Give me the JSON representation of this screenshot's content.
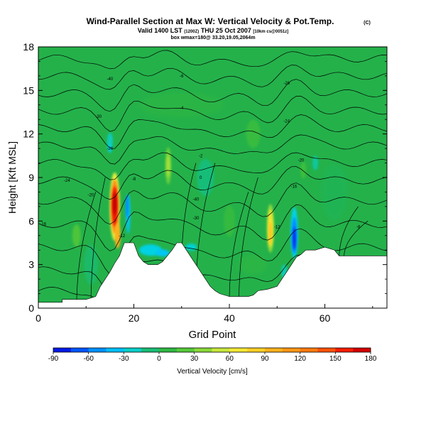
{
  "header": {
    "title": "Wind-Parallel Section at Max W: Vertical Velocity & Pot.Temp.",
    "title_note": "(C)",
    "line2": "Valid 1400 LST",
    "line2_small_a": "(1200Z)",
    "line2_mid": "THU 25 Oct 2007",
    "line2_small_b": "[10km cs@0051z]",
    "line3": "box wmax=180@ 33.20,19.05,2064m"
  },
  "chart_data": {
    "type": "heatmap",
    "title": "Wind-Parallel Section at Max W: Vertical Velocity & Pot.Temp.",
    "xlabel": "Grid Point",
    "ylabel": "Height [Kft MSL]",
    "xlim": [
      0,
      73
    ],
    "ylim": [
      0,
      18
    ],
    "xticks": [
      0,
      20,
      40,
      60
    ],
    "yticks": [
      0,
      3,
      6,
      9,
      12,
      15,
      18
    ],
    "colorbar": {
      "label": "Vertical Velocity [cm/s]",
      "ticks": [
        -90,
        -60,
        -30,
        0,
        30,
        60,
        90,
        120,
        150,
        180
      ],
      "range": [
        -90,
        180
      ]
    },
    "features": [
      {
        "label": "updraft",
        "x": 16,
        "y": 7,
        "w": 180
      },
      {
        "label": "downdraft",
        "x": 18,
        "y": 6.5,
        "w": -40
      },
      {
        "label": "updraft",
        "x": 27,
        "y": 9.5,
        "w": 40
      },
      {
        "label": "updraft",
        "x": 48.5,
        "y": 5.5,
        "w": 90
      },
      {
        "label": "downdraft",
        "x": 53.5,
        "y": 5,
        "w": -75
      },
      {
        "label": "downdraft",
        "x": 27,
        "y": 4.2,
        "w": -35
      }
    ],
    "terrain": [
      [
        0,
        0.4
      ],
      [
        5,
        0.4
      ],
      [
        5,
        0.6
      ],
      [
        10,
        0.6
      ],
      [
        12,
        0.8
      ],
      [
        13,
        1.5
      ],
      [
        14,
        2.0
      ],
      [
        15,
        2.5
      ],
      [
        16,
        3.1
      ],
      [
        17,
        3.6
      ],
      [
        18,
        4.5
      ],
      [
        20,
        4.5
      ],
      [
        21,
        3.6
      ],
      [
        22,
        3.2
      ],
      [
        23,
        3.0
      ],
      [
        25,
        3.0
      ],
      [
        26,
        3.2
      ],
      [
        27,
        3.6
      ],
      [
        28,
        4.0
      ],
      [
        29,
        4.5
      ],
      [
        30,
        4.5
      ],
      [
        31,
        4.0
      ],
      [
        32,
        3.5
      ],
      [
        33,
        3.0
      ],
      [
        34,
        2.5
      ],
      [
        35,
        2.0
      ],
      [
        36,
        1.5
      ],
      [
        37,
        1.2
      ],
      [
        38,
        1.0
      ],
      [
        40,
        0.8
      ],
      [
        44,
        0.8
      ],
      [
        45,
        0.9
      ],
      [
        46,
        1.2
      ],
      [
        48,
        1.3
      ],
      [
        50,
        1.5
      ],
      [
        51,
        2.0
      ],
      [
        52,
        2.5
      ],
      [
        53,
        3.0
      ],
      [
        54,
        3.5
      ],
      [
        55,
        3.7
      ],
      [
        56,
        4.0
      ],
      [
        58,
        4.0
      ],
      [
        60,
        4.2
      ],
      [
        62,
        4.0
      ],
      [
        63,
        3.6
      ],
      [
        66,
        3.6
      ],
      [
        73,
        3.6
      ]
    ],
    "contour_labels": [
      "-40",
      "-30",
      "-26",
      "-24",
      "-20",
      "-16",
      "-12",
      "-8",
      "-6",
      "-4",
      "-2",
      "0"
    ],
    "contour_label_color": "#000000"
  }
}
